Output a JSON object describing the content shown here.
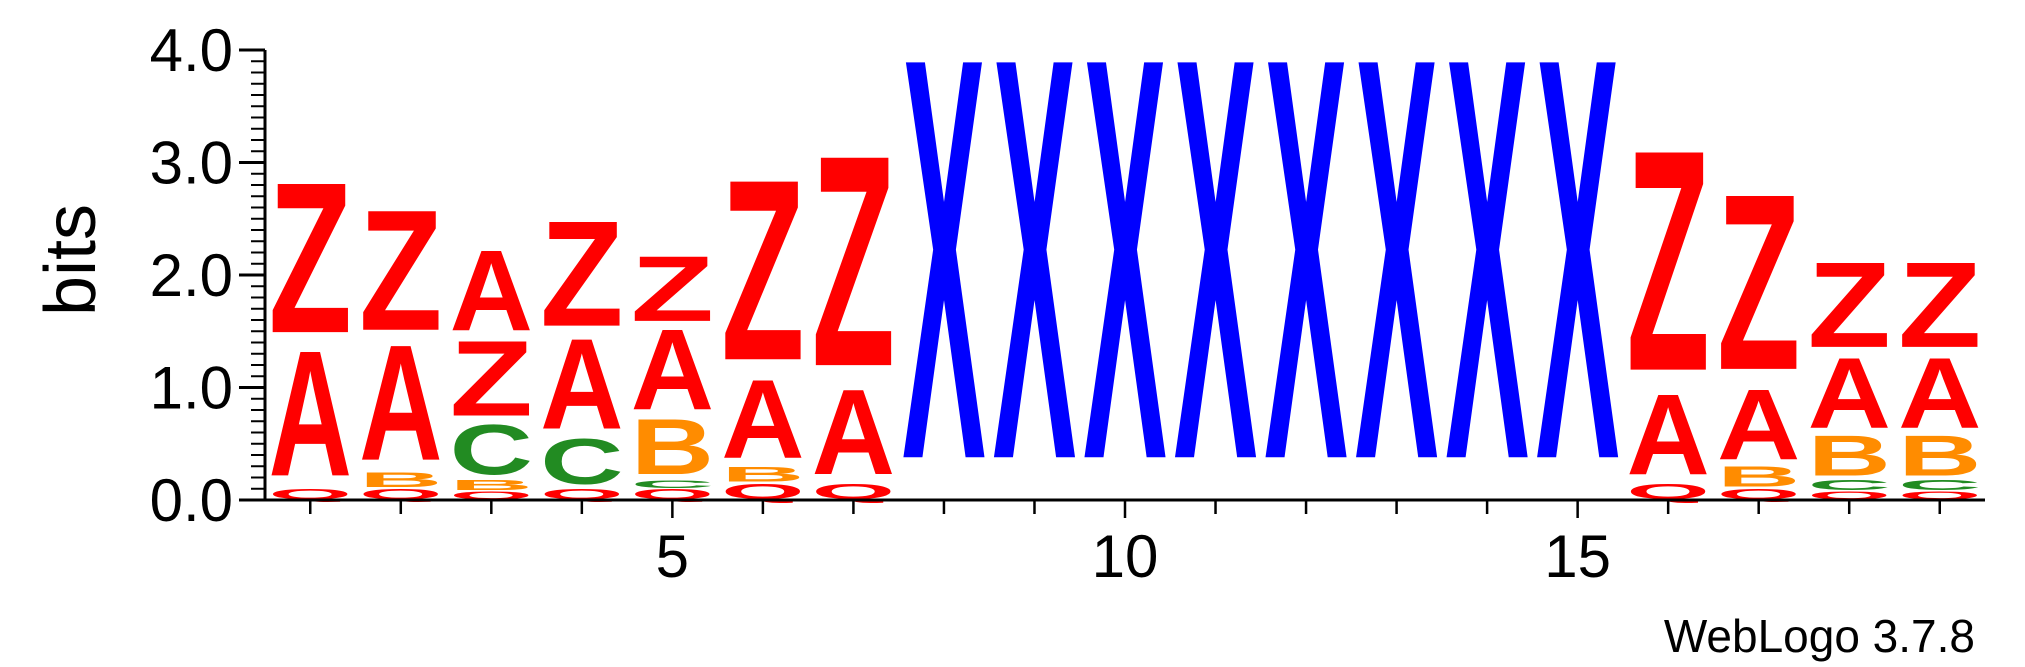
{
  "chart_data": {
    "type": "sequence_logo",
    "ylabel": "bits",
    "ylim": [
      0,
      4.0
    ],
    "yticks": [
      {
        "value": 0.0,
        "label": "0.0"
      },
      {
        "value": 1.0,
        "label": "1.0"
      },
      {
        "value": 2.0,
        "label": "2.0"
      },
      {
        "value": 3.0,
        "label": "3.0"
      },
      {
        "value": 4.0,
        "label": "4.0"
      }
    ],
    "xlim": [
      0.5,
      19.5
    ],
    "xticks": [
      {
        "value": 5,
        "label": "5"
      },
      {
        "value": 10,
        "label": "10"
      },
      {
        "value": 15,
        "label": "15"
      }
    ],
    "credit": "WebLogo 3.7.8",
    "colors": {
      "A": "#ff0000",
      "Z": "#ff0000",
      "Q": "#ff0000",
      "B": "#ff8c00",
      "C": "#228b22",
      "X": "#0000ff"
    },
    "positions": [
      {
        "pos": 1,
        "stack": [
          {
            "letter": "Q",
            "height": 0.1
          },
          {
            "letter": "A",
            "height": 1.25
          },
          {
            "letter": "Z",
            "height": 1.5
          }
        ]
      },
      {
        "pos": 2,
        "stack": [
          {
            "letter": "Q",
            "height": 0.1
          },
          {
            "letter": "B",
            "height": 0.15
          },
          {
            "letter": "A",
            "height": 1.15
          },
          {
            "letter": "Z",
            "height": 1.2
          }
        ]
      },
      {
        "pos": 3,
        "stack": [
          {
            "letter": "Q",
            "height": 0.08
          },
          {
            "letter": "B",
            "height": 0.1
          },
          {
            "letter": "C",
            "height": 0.5
          },
          {
            "letter": "Z",
            "height": 0.75
          },
          {
            "letter": "A",
            "height": 0.8
          }
        ]
      },
      {
        "pos": 4,
        "stack": [
          {
            "letter": "Q",
            "height": 0.1
          },
          {
            "letter": "C",
            "height": 0.45
          },
          {
            "letter": "A",
            "height": 0.9
          },
          {
            "letter": "Z",
            "height": 1.05
          }
        ]
      },
      {
        "pos": 5,
        "stack": [
          {
            "letter": "Q",
            "height": 0.1
          },
          {
            "letter": "C",
            "height": 0.08
          },
          {
            "letter": "B",
            "height": 0.55
          },
          {
            "letter": "A",
            "height": 0.8
          },
          {
            "letter": "Z",
            "height": 0.65
          }
        ]
      },
      {
        "pos": 6,
        "stack": [
          {
            "letter": "Q",
            "height": 0.15
          },
          {
            "letter": "B",
            "height": 0.15
          },
          {
            "letter": "A",
            "height": 0.78
          },
          {
            "letter": "Z",
            "height": 1.8
          }
        ]
      },
      {
        "pos": 7,
        "stack": [
          {
            "letter": "Q",
            "height": 0.15
          },
          {
            "letter": "A",
            "height": 0.85
          },
          {
            "letter": "Z",
            "height": 2.1
          }
        ]
      },
      {
        "pos": 8,
        "stack": [
          {
            "letter": "X",
            "height": 4.0
          }
        ]
      },
      {
        "pos": 9,
        "stack": [
          {
            "letter": "X",
            "height": 4.0
          }
        ]
      },
      {
        "pos": 10,
        "stack": [
          {
            "letter": "X",
            "height": 4.0
          }
        ]
      },
      {
        "pos": 11,
        "stack": [
          {
            "letter": "X",
            "height": 4.0
          }
        ]
      },
      {
        "pos": 12,
        "stack": [
          {
            "letter": "X",
            "height": 4.0
          }
        ]
      },
      {
        "pos": 13,
        "stack": [
          {
            "letter": "X",
            "height": 4.0
          }
        ]
      },
      {
        "pos": 14,
        "stack": [
          {
            "letter": "X",
            "height": 4.0
          }
        ]
      },
      {
        "pos": 15,
        "stack": [
          {
            "letter": "X",
            "height": 4.0
          }
        ]
      },
      {
        "pos": 16,
        "stack": [
          {
            "letter": "Q",
            "height": 0.15
          },
          {
            "letter": "A",
            "height": 0.8
          },
          {
            "letter": "Z",
            "height": 2.2
          }
        ]
      },
      {
        "pos": 17,
        "stack": [
          {
            "letter": "Q",
            "height": 0.1
          },
          {
            "letter": "B",
            "height": 0.2
          },
          {
            "letter": "A",
            "height": 0.7
          },
          {
            "letter": "Z",
            "height": 1.75
          }
        ]
      },
      {
        "pos": 18,
        "stack": [
          {
            "letter": "Q",
            "height": 0.08
          },
          {
            "letter": "C",
            "height": 0.1
          },
          {
            "letter": "B",
            "height": 0.4
          },
          {
            "letter": "A",
            "height": 0.7
          },
          {
            "letter": "Z",
            "height": 0.85
          }
        ]
      },
      {
        "pos": 19,
        "stack": [
          {
            "letter": "Q",
            "height": 0.08
          },
          {
            "letter": "C",
            "height": 0.1
          },
          {
            "letter": "B",
            "height": 0.4
          },
          {
            "letter": "A",
            "height": 0.7
          },
          {
            "letter": "Z",
            "height": 0.85
          }
        ]
      }
    ]
  }
}
